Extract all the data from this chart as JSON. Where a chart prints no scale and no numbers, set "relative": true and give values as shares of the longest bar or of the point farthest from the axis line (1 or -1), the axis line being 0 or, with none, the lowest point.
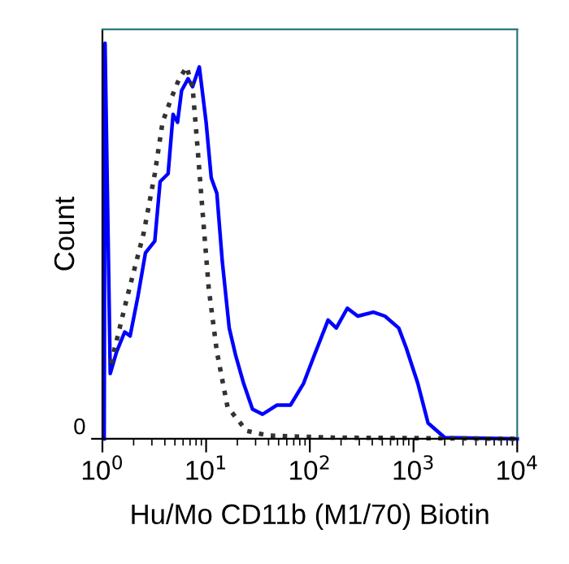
{
  "chart_data": {
    "type": "line",
    "relative": true,
    "xlabel": "Hu/Mo CD11b (M1/70) Biotin",
    "ylabel": "Count",
    "log": "x",
    "xlim": [
      1,
      10000
    ],
    "xticks": [
      {
        "value": 1,
        "label": "10$^{0}$"
      },
      {
        "value": 10,
        "label": "10$^{1}$"
      },
      {
        "value": 100,
        "label": "10$^{2}$"
      },
      {
        "value": 1000,
        "label": "10$^{3}$"
      },
      {
        "value": 10000,
        "label": "10$^{4}$"
      }
    ],
    "annotations": [
      "0"
    ],
    "grid": false,
    "legend": false,
    "series": [
      {
        "color": "#0000ff",
        "line_style": "solid",
        "x": [
          1.04,
          1.06,
          1.19,
          1.37,
          1.64,
          1.85,
          2.2,
          2.6,
          3.2,
          3.6,
          4.3,
          4.8,
          5.3,
          5.8,
          6.7,
          7.4,
          8.6,
          10,
          11.2,
          12.7,
          14.3,
          16.7,
          19.3,
          23,
          28,
          35,
          48,
          65,
          87,
          110,
          150,
          180,
          230,
          290,
          410,
          530,
          720,
          850,
          1100,
          1380,
          2000,
          10000
        ],
        "values": [
          0,
          1.0,
          0.165,
          0.22,
          0.27,
          0.26,
          0.36,
          0.47,
          0.5,
          0.65,
          0.67,
          0.82,
          0.8,
          0.88,
          0.91,
          0.89,
          0.94,
          0.8,
          0.66,
          0.62,
          0.45,
          0.28,
          0.21,
          0.14,
          0.075,
          0.062,
          0.085,
          0.085,
          0.14,
          0.21,
          0.3,
          0.28,
          0.33,
          0.31,
          0.32,
          0.31,
          0.28,
          0.23,
          0.14,
          0.04,
          0.003,
          0
        ]
      },
      {
        "color": "#333333",
        "line_style": "dotted",
        "x": [
          1.21,
          1.74,
          2.5,
          3.2,
          3.8,
          4.6,
          5.5,
          6.5,
          7.4,
          8.3,
          9.4,
          10.6,
          12.7,
          16.1,
          24.6,
          40,
          170,
          10000
        ],
        "values": [
          0.19,
          0.36,
          0.52,
          0.67,
          0.8,
          0.86,
          0.91,
          0.94,
          0.89,
          0.73,
          0.55,
          0.38,
          0.22,
          0.08,
          0.02,
          0.008,
          0.003,
          0
        ]
      }
    ]
  }
}
